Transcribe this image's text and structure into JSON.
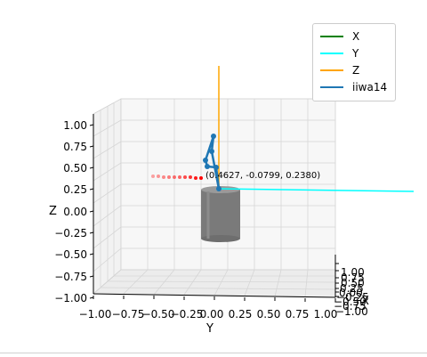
{
  "chart_data": {
    "type": "3d-line",
    "title": "",
    "xlabel": "X",
    "ylabel": "Y",
    "zlabel": "Z",
    "xlim": [
      -1.0,
      1.0
    ],
    "ylim": [
      -1.0,
      1.0
    ],
    "zlim": [
      -1.0,
      1.0
    ],
    "grid": true,
    "legend_position": "top-right",
    "x_ticks": [
      "−1.00",
      "−0.75",
      "−0.50",
      "−0.25",
      "0.00",
      "0.25",
      "0.50",
      "0.75",
      "1.00"
    ],
    "y_ticks": [
      "−1.00",
      "−0.75",
      "−0.50",
      "−0.25",
      "0.00",
      "0.25",
      "0.50",
      "0.75",
      "1.00"
    ],
    "z_ticks": [
      "−1.00",
      "−0.75",
      "−0.50",
      "−0.25",
      "0.00",
      "0.25",
      "0.50",
      "0.75",
      "1.00"
    ],
    "series": [
      {
        "name": "X",
        "color": "#008000"
      },
      {
        "name": "Y",
        "color": "#00ffff"
      },
      {
        "name": "Z",
        "color": "#ffa500"
      },
      {
        "name": "iiwa14",
        "color": "#1f77b4"
      }
    ],
    "annotation": "(0.4627, -0.0799, 0.2380)",
    "target_marker_color": "#ff0000"
  }
}
